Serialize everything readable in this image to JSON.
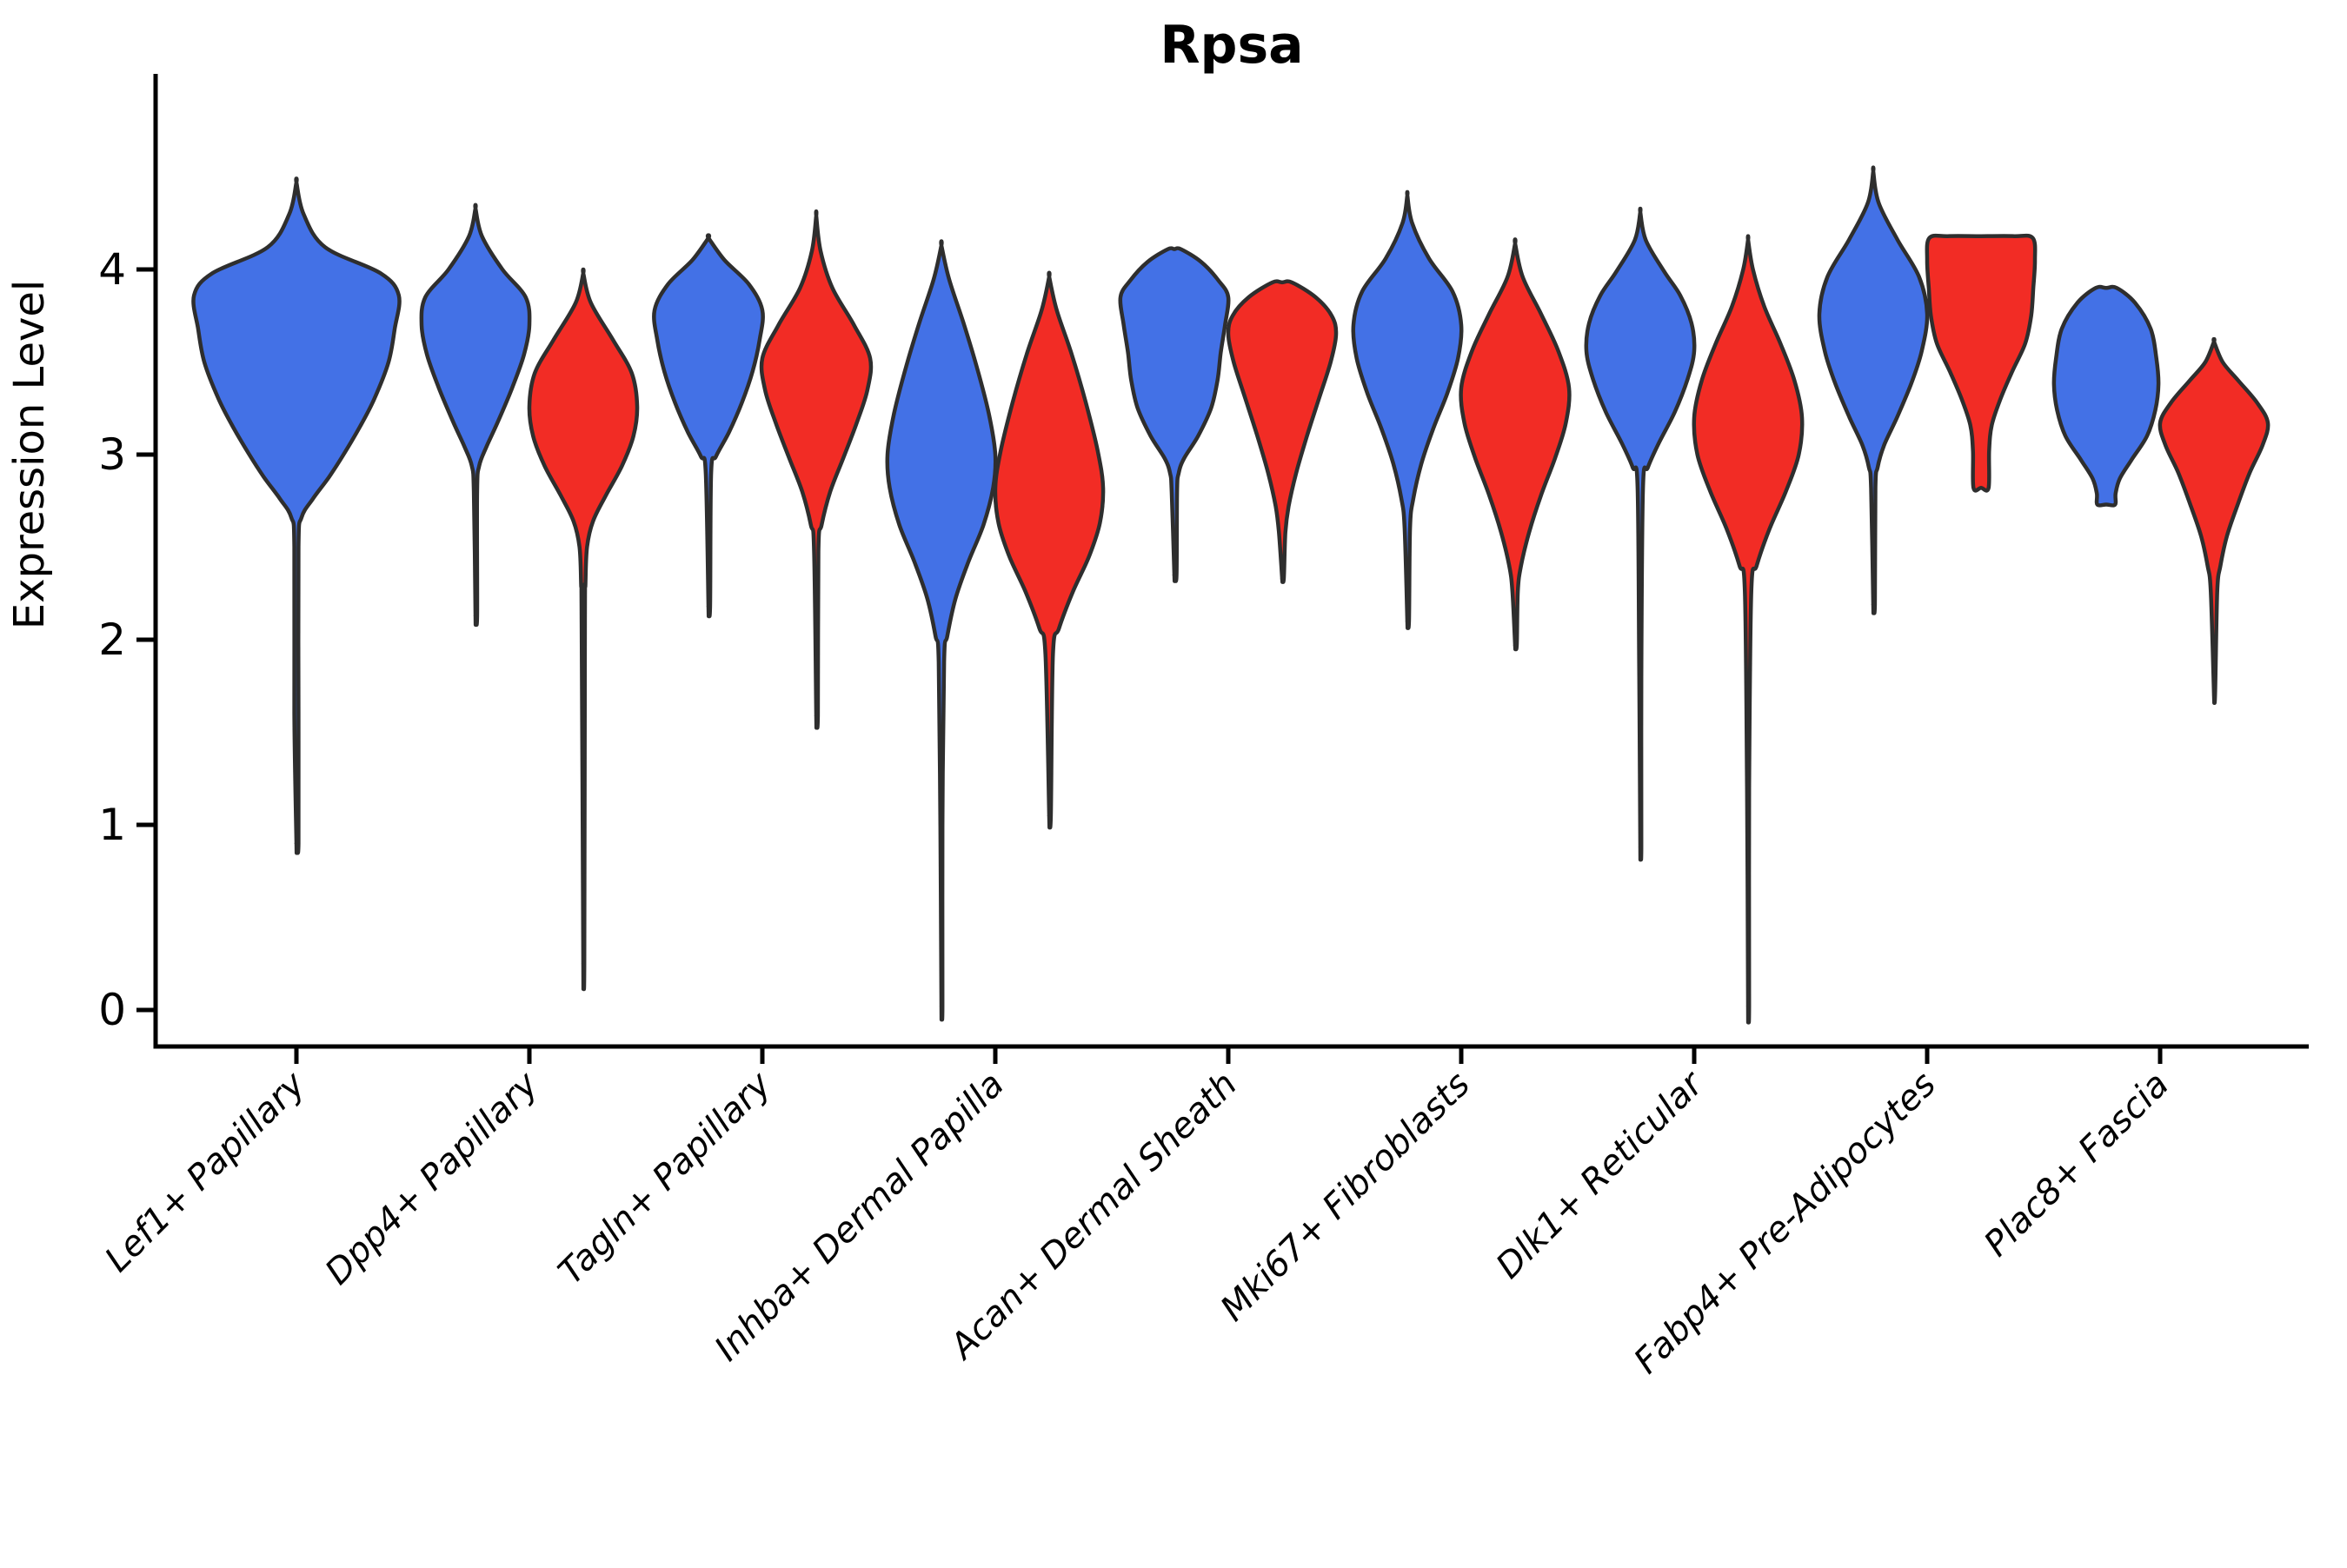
{
  "figure": {
    "title": "Rpsa"
  },
  "chart_data": {
    "type": "violin",
    "title": "Rpsa",
    "xlabel": "",
    "ylabel": "Expression Level",
    "yticks": [
      0,
      1,
      2,
      3,
      4
    ],
    "ylim": [
      -0.2,
      5.05
    ],
    "grid": false,
    "legend_position": "none",
    "categories": [
      "Lef1+ Papillary",
      "Dpp4+ Papillary",
      "Tagln+ Papillary",
      "Inhba+ Dermal Papilla",
      "Acan+ Dermal Sheath",
      "Mki67+ Fibroblasts",
      "Dlk1+ Reticular",
      "Fabp4+ Pre-Adipocytes",
      "Plac8+ Fascia"
    ],
    "split_colors": {
      "group1": "#4371E6",
      "group2": "#F22C25"
    },
    "outline_color": "#2E2E2E",
    "axis_color": "#000000",
    "violins": [
      {
        "category": 0,
        "split": "group1",
        "position": "center",
        "width_scale": 1.9,
        "profile": [
          [
            4.47,
            0.02
          ],
          [
            4.3,
            0.07
          ],
          [
            4.12,
            0.28
          ],
          [
            3.98,
            0.82
          ],
          [
            3.86,
            1.0
          ],
          [
            3.68,
            0.96
          ],
          [
            3.5,
            0.9
          ],
          [
            3.3,
            0.76
          ],
          [
            3.15,
            0.62
          ],
          [
            3.0,
            0.46
          ],
          [
            2.88,
            0.32
          ],
          [
            2.76,
            0.16
          ],
          [
            2.66,
            0.05
          ],
          [
            2.5,
            0.02
          ],
          [
            1.6,
            0.02
          ],
          [
            0.9,
            0.02
          ]
        ]
      },
      {
        "category": 1,
        "split": "group1",
        "position": "left",
        "width_scale": 1.0,
        "profile": [
          [
            4.33,
            0.03
          ],
          [
            4.18,
            0.12
          ],
          [
            4.0,
            0.5
          ],
          [
            3.85,
            0.93
          ],
          [
            3.7,
            1.0
          ],
          [
            3.54,
            0.9
          ],
          [
            3.36,
            0.68
          ],
          [
            3.18,
            0.42
          ],
          [
            3.04,
            0.2
          ],
          [
            2.94,
            0.07
          ],
          [
            2.8,
            0.03
          ],
          [
            2.13,
            0.03
          ]
        ]
      },
      {
        "category": 1,
        "split": "group2",
        "position": "right",
        "width_scale": 1.0,
        "profile": [
          [
            3.98,
            0.03
          ],
          [
            3.82,
            0.14
          ],
          [
            3.62,
            0.55
          ],
          [
            3.44,
            0.9
          ],
          [
            3.26,
            1.0
          ],
          [
            3.1,
            0.93
          ],
          [
            2.94,
            0.72
          ],
          [
            2.78,
            0.42
          ],
          [
            2.64,
            0.18
          ],
          [
            2.5,
            0.07
          ],
          [
            2.3,
            0.04
          ],
          [
            2.1,
            0.03
          ],
          [
            0.25,
            0.02
          ]
        ]
      },
      {
        "category": 2,
        "split": "group1",
        "position": "left",
        "width_scale": 1.0,
        "profile": [
          [
            4.17,
            0.04
          ],
          [
            4.05,
            0.3
          ],
          [
            3.92,
            0.75
          ],
          [
            3.78,
            1.0
          ],
          [
            3.62,
            0.95
          ],
          [
            3.45,
            0.82
          ],
          [
            3.28,
            0.62
          ],
          [
            3.12,
            0.38
          ],
          [
            2.99,
            0.14
          ],
          [
            2.9,
            0.05
          ],
          [
            2.18,
            0.03
          ]
        ]
      },
      {
        "category": 2,
        "split": "group2",
        "position": "right",
        "width_scale": 1.0,
        "profile": [
          [
            4.29,
            0.02
          ],
          [
            4.1,
            0.08
          ],
          [
            3.9,
            0.3
          ],
          [
            3.7,
            0.7
          ],
          [
            3.52,
            1.0
          ],
          [
            3.35,
            0.95
          ],
          [
            3.17,
            0.75
          ],
          [
            2.98,
            0.5
          ],
          [
            2.8,
            0.26
          ],
          [
            2.62,
            0.1
          ],
          [
            2.48,
            0.04
          ],
          [
            1.59,
            0.03
          ]
        ]
      },
      {
        "category": 3,
        "split": "group1",
        "position": "left",
        "width_scale": 1.0,
        "profile": [
          [
            4.13,
            0.03
          ],
          [
            3.95,
            0.14
          ],
          [
            3.72,
            0.4
          ],
          [
            3.48,
            0.65
          ],
          [
            3.22,
            0.88
          ],
          [
            3.0,
            1.0
          ],
          [
            2.82,
            0.96
          ],
          [
            2.62,
            0.78
          ],
          [
            2.42,
            0.5
          ],
          [
            2.22,
            0.26
          ],
          [
            2.02,
            0.11
          ],
          [
            1.88,
            0.05
          ],
          [
            1.0,
            0.02
          ],
          [
            0.02,
            0.02
          ]
        ]
      },
      {
        "category": 3,
        "split": "group2",
        "position": "right",
        "width_scale": 1.0,
        "profile": [
          [
            3.96,
            0.03
          ],
          [
            3.78,
            0.14
          ],
          [
            3.54,
            0.42
          ],
          [
            3.28,
            0.68
          ],
          [
            3.02,
            0.9
          ],
          [
            2.82,
            1.0
          ],
          [
            2.63,
            0.94
          ],
          [
            2.45,
            0.74
          ],
          [
            2.26,
            0.44
          ],
          [
            2.06,
            0.18
          ],
          [
            1.92,
            0.07
          ],
          [
            1.05,
            0.03
          ]
        ]
      },
      {
        "category": 4,
        "split": "group1",
        "position": "left",
        "width_scale": 1.0,
        "profile": [
          [
            4.11,
            0.12
          ],
          [
            4.04,
            0.5
          ],
          [
            3.94,
            0.82
          ],
          [
            3.85,
            1.0
          ],
          [
            3.7,
            0.94
          ],
          [
            3.55,
            0.86
          ],
          [
            3.4,
            0.8
          ],
          [
            3.25,
            0.68
          ],
          [
            3.1,
            0.44
          ],
          [
            2.98,
            0.18
          ],
          [
            2.9,
            0.08
          ],
          [
            2.8,
            0.05
          ],
          [
            2.35,
            0.04
          ]
        ]
      },
      {
        "category": 4,
        "split": "group2",
        "position": "right",
        "width_scale": 1.0,
        "profile": [
          [
            3.93,
            0.18
          ],
          [
            3.85,
            0.62
          ],
          [
            3.75,
            0.92
          ],
          [
            3.65,
            1.0
          ],
          [
            3.5,
            0.9
          ],
          [
            3.3,
            0.68
          ],
          [
            3.1,
            0.46
          ],
          [
            2.9,
            0.26
          ],
          [
            2.72,
            0.12
          ],
          [
            2.58,
            0.06
          ],
          [
            2.33,
            0.03
          ]
        ]
      },
      {
        "category": 5,
        "split": "group1",
        "position": "left",
        "width_scale": 1.0,
        "profile": [
          [
            4.4,
            0.02
          ],
          [
            4.25,
            0.09
          ],
          [
            4.06,
            0.4
          ],
          [
            3.88,
            0.84
          ],
          [
            3.7,
            1.0
          ],
          [
            3.52,
            0.94
          ],
          [
            3.33,
            0.74
          ],
          [
            3.14,
            0.48
          ],
          [
            2.95,
            0.26
          ],
          [
            2.76,
            0.11
          ],
          [
            2.6,
            0.05
          ],
          [
            2.1,
            0.03
          ]
        ]
      },
      {
        "category": 5,
        "split": "group2",
        "position": "right",
        "width_scale": 1.0,
        "profile": [
          [
            4.14,
            0.03
          ],
          [
            3.96,
            0.14
          ],
          [
            3.76,
            0.48
          ],
          [
            3.56,
            0.8
          ],
          [
            3.36,
            1.0
          ],
          [
            3.17,
            0.94
          ],
          [
            2.98,
            0.74
          ],
          [
            2.78,
            0.48
          ],
          [
            2.58,
            0.26
          ],
          [
            2.4,
            0.11
          ],
          [
            2.26,
            0.05
          ],
          [
            1.97,
            0.03
          ]
        ]
      },
      {
        "category": 6,
        "split": "group1",
        "position": "left",
        "width_scale": 1.0,
        "profile": [
          [
            4.31,
            0.02
          ],
          [
            4.16,
            0.1
          ],
          [
            3.99,
            0.44
          ],
          [
            3.86,
            0.74
          ],
          [
            3.71,
            0.95
          ],
          [
            3.56,
            1.0
          ],
          [
            3.41,
            0.88
          ],
          [
            3.23,
            0.64
          ],
          [
            3.06,
            0.34
          ],
          [
            2.93,
            0.14
          ],
          [
            2.82,
            0.05
          ],
          [
            1.8,
            0.02
          ],
          [
            0.88,
            0.02
          ]
        ]
      },
      {
        "category": 6,
        "split": "group2",
        "position": "right",
        "width_scale": 1.0,
        "profile": [
          [
            4.16,
            0.02
          ],
          [
            4.0,
            0.09
          ],
          [
            3.8,
            0.3
          ],
          [
            3.6,
            0.6
          ],
          [
            3.4,
            0.86
          ],
          [
            3.2,
            1.0
          ],
          [
            3.0,
            0.94
          ],
          [
            2.8,
            0.7
          ],
          [
            2.6,
            0.4
          ],
          [
            2.4,
            0.16
          ],
          [
            2.26,
            0.06
          ],
          [
            1.2,
            0.02
          ],
          [
            0.02,
            0.02
          ]
        ]
      },
      {
        "category": 7,
        "split": "group1",
        "position": "left",
        "width_scale": 1.0,
        "profile": [
          [
            4.53,
            0.02
          ],
          [
            4.36,
            0.1
          ],
          [
            4.16,
            0.45
          ],
          [
            3.96,
            0.85
          ],
          [
            3.76,
            1.0
          ],
          [
            3.56,
            0.9
          ],
          [
            3.38,
            0.7
          ],
          [
            3.2,
            0.44
          ],
          [
            3.05,
            0.2
          ],
          [
            2.93,
            0.08
          ],
          [
            2.82,
            0.04
          ],
          [
            2.19,
            0.03
          ]
        ]
      },
      {
        "category": 7,
        "split": "group2",
        "position": "right",
        "width_scale": 1.0,
        "profile": [
          [
            4.18,
            0.62
          ],
          [
            4.17,
            0.96
          ],
          [
            4.05,
            1.0
          ],
          [
            3.9,
            0.97
          ],
          [
            3.75,
            0.93
          ],
          [
            3.6,
            0.82
          ],
          [
            3.45,
            0.58
          ],
          [
            3.3,
            0.36
          ],
          [
            3.16,
            0.2
          ],
          [
            3.02,
            0.15
          ],
          [
            2.82,
            0.14
          ]
        ]
      },
      {
        "category": 8,
        "split": "group1",
        "position": "left",
        "width_scale": 0.97,
        "profile": [
          [
            3.9,
            0.2
          ],
          [
            3.82,
            0.55
          ],
          [
            3.68,
            0.85
          ],
          [
            3.52,
            0.96
          ],
          [
            3.38,
            1.0
          ],
          [
            3.24,
            0.94
          ],
          [
            3.1,
            0.78
          ],
          [
            2.97,
            0.48
          ],
          [
            2.87,
            0.26
          ],
          [
            2.79,
            0.18
          ],
          [
            2.73,
            0.17
          ]
        ]
      },
      {
        "category": 8,
        "split": "group2",
        "position": "right",
        "width_scale": 1.0,
        "profile": [
          [
            3.61,
            0.03
          ],
          [
            3.5,
            0.16
          ],
          [
            3.4,
            0.45
          ],
          [
            3.28,
            0.8
          ],
          [
            3.17,
            1.0
          ],
          [
            3.05,
            0.9
          ],
          [
            2.9,
            0.66
          ],
          [
            2.73,
            0.44
          ],
          [
            2.56,
            0.24
          ],
          [
            2.4,
            0.12
          ],
          [
            2.26,
            0.06
          ],
          [
            1.7,
            0.02
          ]
        ]
      }
    ]
  }
}
